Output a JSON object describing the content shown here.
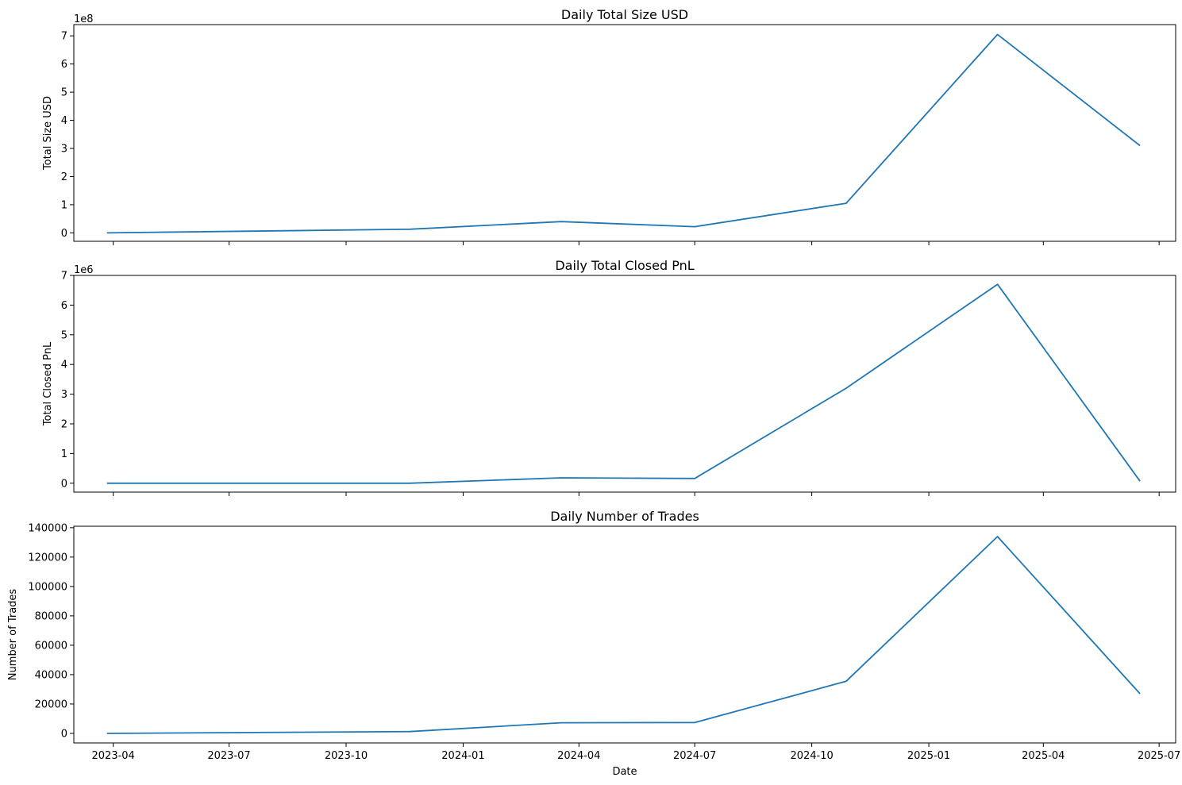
{
  "chart_data": [
    {
      "type": "line",
      "title": "Daily Total Size USD",
      "xlabel": "",
      "ylabel": "Total Size USD",
      "y_multiplier_label": "1e8",
      "x": [
        "2023-03-27",
        "2023-11-20",
        "2024-03-18",
        "2024-07-01",
        "2024-10-28",
        "2025-02-24",
        "2025-06-16"
      ],
      "values": [
        0.0,
        0.13,
        0.4,
        0.22,
        1.05,
        7.05,
        3.1
      ],
      "xlim": [
        "2023-03-01",
        "2025-07-14"
      ],
      "ylim": [
        -0.3,
        7.4
      ],
      "y_ticks": [
        "0",
        "1",
        "2",
        "3",
        "4",
        "5",
        "6",
        "7"
      ],
      "x_ticks": [
        "2023-04",
        "2023-07",
        "2023-10",
        "2024-01",
        "2024-04",
        "2024-07",
        "2024-10",
        "2025-01",
        "2025-04",
        "2025-07"
      ],
      "show_x_tick_labels": false,
      "color": "#1f77b4",
      "grid": false
    },
    {
      "type": "line",
      "title": "Daily Total Closed PnL",
      "xlabel": "",
      "ylabel": "Total Closed PnL",
      "y_multiplier_label": "1e6",
      "x": [
        "2023-03-27",
        "2023-11-20",
        "2024-03-18",
        "2024-07-01",
        "2024-10-28",
        "2025-02-24",
        "2025-06-16"
      ],
      "values": [
        0.0,
        0.0,
        0.18,
        0.16,
        3.2,
        6.7,
        0.07
      ],
      "xlim": [
        "2023-03-01",
        "2025-07-14"
      ],
      "ylim": [
        -0.3,
        7.0
      ],
      "y_ticks": [
        "0",
        "1",
        "2",
        "3",
        "4",
        "5",
        "6",
        "7"
      ],
      "x_ticks": [
        "2023-04",
        "2023-07",
        "2023-10",
        "2024-01",
        "2024-04",
        "2024-07",
        "2024-10",
        "2025-01",
        "2025-04",
        "2025-07"
      ],
      "show_x_tick_labels": false,
      "color": "#1f77b4",
      "grid": false
    },
    {
      "type": "line",
      "title": "Daily Number of Trades",
      "xlabel": "Date",
      "ylabel": "Number of Trades",
      "y_multiplier_label": "",
      "x": [
        "2023-03-27",
        "2023-11-20",
        "2024-03-18",
        "2024-07-01",
        "2024-10-28",
        "2025-02-24",
        "2025-06-16"
      ],
      "values": [
        0,
        1200,
        7200,
        7400,
        35500,
        134000,
        27000
      ],
      "xlim": [
        "2023-03-01",
        "2025-07-14"
      ],
      "ylim": [
        -6500,
        141000
      ],
      "y_ticks": [
        "0",
        "20000",
        "40000",
        "60000",
        "80000",
        "100000",
        "120000",
        "140000"
      ],
      "x_ticks": [
        "2023-04",
        "2023-07",
        "2023-10",
        "2024-01",
        "2024-04",
        "2024-07",
        "2024-10",
        "2025-01",
        "2025-04",
        "2025-07"
      ],
      "show_x_tick_labels": true,
      "color": "#1f77b4",
      "grid": false
    }
  ]
}
